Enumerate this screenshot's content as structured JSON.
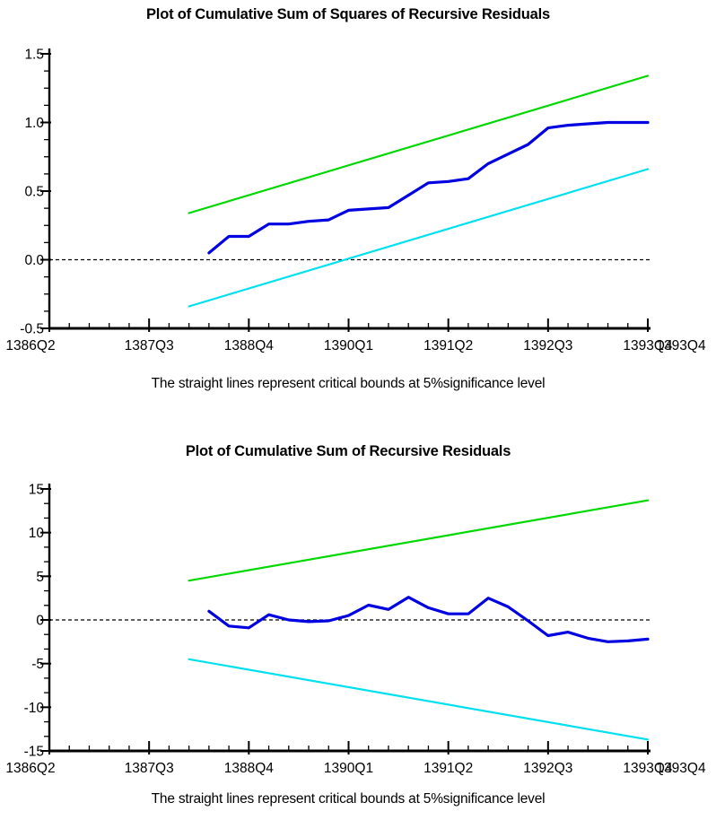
{
  "chart_data": [
    {
      "name": "cusumsq-chart",
      "type": "line",
      "title": "Plot of Cumulative Sum of Squares of Recursive Residuals",
      "caption": "The straight lines represent critical bounds at 5%significance level",
      "y_axis": {
        "min": -0.5,
        "max": 1.5,
        "tick_values": [
          1.5,
          1.0,
          0.5,
          0.0,
          -0.5
        ],
        "tick_labels": [
          "1.5",
          "1.0",
          "0.5",
          "0.0",
          "-0.5"
        ],
        "minor_ticks_per_interval": 3
      },
      "x_axis": {
        "total_quarters": 30,
        "major_every": 5,
        "tick_labels": [
          "1386Q2",
          "1387Q3",
          "1388Q4",
          "1390Q1",
          "1391Q2",
          "1392Q3",
          "1393Q4"
        ],
        "end_overlap_label": "1393Q4",
        "index_0_period": "1386Q2",
        "quarterly_step": 1
      },
      "zero_line": true,
      "zero_line_color": "#000000",
      "series": [
        {
          "name": "cusumsq",
          "label": "Cumulative sum of squares of recursive residuals",
          "color": "#0000e0",
          "width": 3.2,
          "x_start_index": 8,
          "start_period": "1388Q2",
          "values": [
            0.05,
            0.17,
            0.17,
            0.26,
            0.26,
            0.28,
            0.29,
            0.36,
            0.37,
            0.38,
            0.47,
            0.56,
            0.57,
            0.59,
            0.7,
            0.77,
            0.84,
            0.96,
            0.98,
            0.99,
            1.0,
            1.0,
            1.0
          ]
        },
        {
          "name": "upper-critical-bound",
          "label": "Upper 5% critical bound",
          "color": "#00d800",
          "width": 2.2,
          "x_indices": [
            7,
            30
          ],
          "start_period": "1388Q1",
          "values": [
            0.34,
            1.34
          ]
        },
        {
          "name": "lower-critical-bound",
          "label": "Lower 5% critical bound",
          "color": "#00e0ee",
          "width": 2.2,
          "x_indices": [
            7,
            30
          ],
          "start_period": "1388Q1",
          "values": [
            -0.34,
            0.66
          ]
        }
      ]
    },
    {
      "name": "cusum-chart",
      "type": "line",
      "title": "Plot of Cumulative Sum of Recursive Residuals",
      "caption": "The straight lines represent critical bounds at 5%significance level",
      "y_axis": {
        "min": -15,
        "max": 15,
        "tick_values": [
          15,
          10,
          5,
          0,
          -5,
          -10,
          -15
        ],
        "tick_labels": [
          "15",
          "10",
          "5",
          "0",
          "-5",
          "-10",
          "-15"
        ],
        "minor_ticks_per_interval": 2
      },
      "x_axis": {
        "total_quarters": 30,
        "major_every": 5,
        "tick_labels": [
          "1386Q2",
          "1387Q3",
          "1388Q4",
          "1390Q1",
          "1391Q2",
          "1392Q3",
          "1393Q4"
        ],
        "end_overlap_label": "1393Q4",
        "index_0_period": "1386Q2",
        "quarterly_step": 1
      },
      "zero_line": true,
      "zero_line_color": "#000000",
      "series": [
        {
          "name": "cusum",
          "label": "Cumulative sum of recursive residuals",
          "color": "#0000e0",
          "width": 3.2,
          "x_start_index": 8,
          "start_period": "1388Q2",
          "values": [
            1.0,
            -0.7,
            -0.9,
            0.6,
            0.0,
            -0.2,
            -0.1,
            0.5,
            1.7,
            1.2,
            2.6,
            1.4,
            0.7,
            0.7,
            2.5,
            1.5,
            -0.1,
            -1.8,
            -1.4,
            -2.1,
            -2.5,
            -2.4,
            -2.2
          ]
        },
        {
          "name": "upper-critical-bound",
          "label": "Upper 5% critical bound",
          "color": "#00d800",
          "width": 2.2,
          "x_indices": [
            7,
            30
          ],
          "start_period": "1388Q1",
          "values": [
            4.5,
            13.7
          ]
        },
        {
          "name": "lower-critical-bound",
          "label": "Lower 5% critical bound",
          "color": "#00e0ee",
          "width": 2.2,
          "x_indices": [
            7,
            30
          ],
          "start_period": "1388Q1",
          "values": [
            -4.5,
            -13.7
          ]
        }
      ]
    }
  ]
}
